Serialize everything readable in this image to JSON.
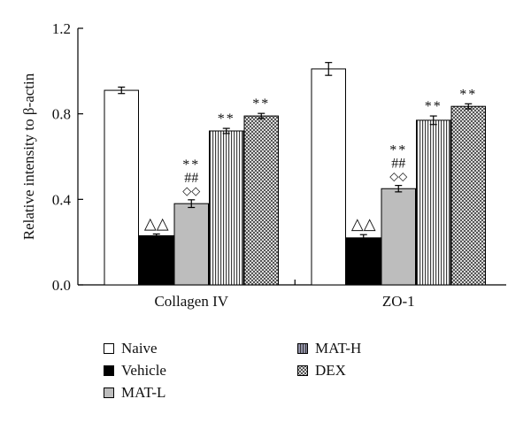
{
  "chart_data": {
    "type": "bar",
    "title": "",
    "xlabel": "",
    "ylabel": "Relative intensity to β-actin",
    "ylim": [
      0,
      1.2
    ],
    "yticks": [
      "0.0",
      "0.4",
      "0.8",
      "1.2"
    ],
    "categories": [
      "Collagen IV",
      "ZO-1"
    ],
    "series": [
      {
        "name": "Naive",
        "values": [
          0.91,
          1.01
        ],
        "errors": [
          0.015,
          0.03
        ],
        "annotations": [
          "",
          ""
        ],
        "pattern": "white"
      },
      {
        "name": "Vehicle",
        "values": [
          0.23,
          0.22
        ],
        "errors": [
          0.008,
          0.015
        ],
        "annotations": [
          "△△",
          "△△"
        ],
        "pattern": "black"
      },
      {
        "name": "MAT-L",
        "values": [
          0.38,
          0.45
        ],
        "errors": [
          0.018,
          0.015
        ],
        "annotations": [
          "◇◇|##|**",
          "◇◇|##|**"
        ],
        "pattern": "gray"
      },
      {
        "name": "MAT-H",
        "values": [
          0.72,
          0.77
        ],
        "errors": [
          0.012,
          0.02
        ],
        "annotations": [
          "**",
          "**"
        ],
        "pattern": "stripes"
      },
      {
        "name": "DEX",
        "values": [
          0.79,
          0.835
        ],
        "errors": [
          0.012,
          0.012
        ],
        "annotations": [
          "**",
          "**"
        ],
        "pattern": "dots"
      }
    ],
    "legend": {
      "placement": "bottom"
    },
    "grid": false
  },
  "colors": {
    "white": "#ffffff",
    "black": "#000000",
    "gray": "#bdbdbd",
    "axis": "#000000"
  }
}
